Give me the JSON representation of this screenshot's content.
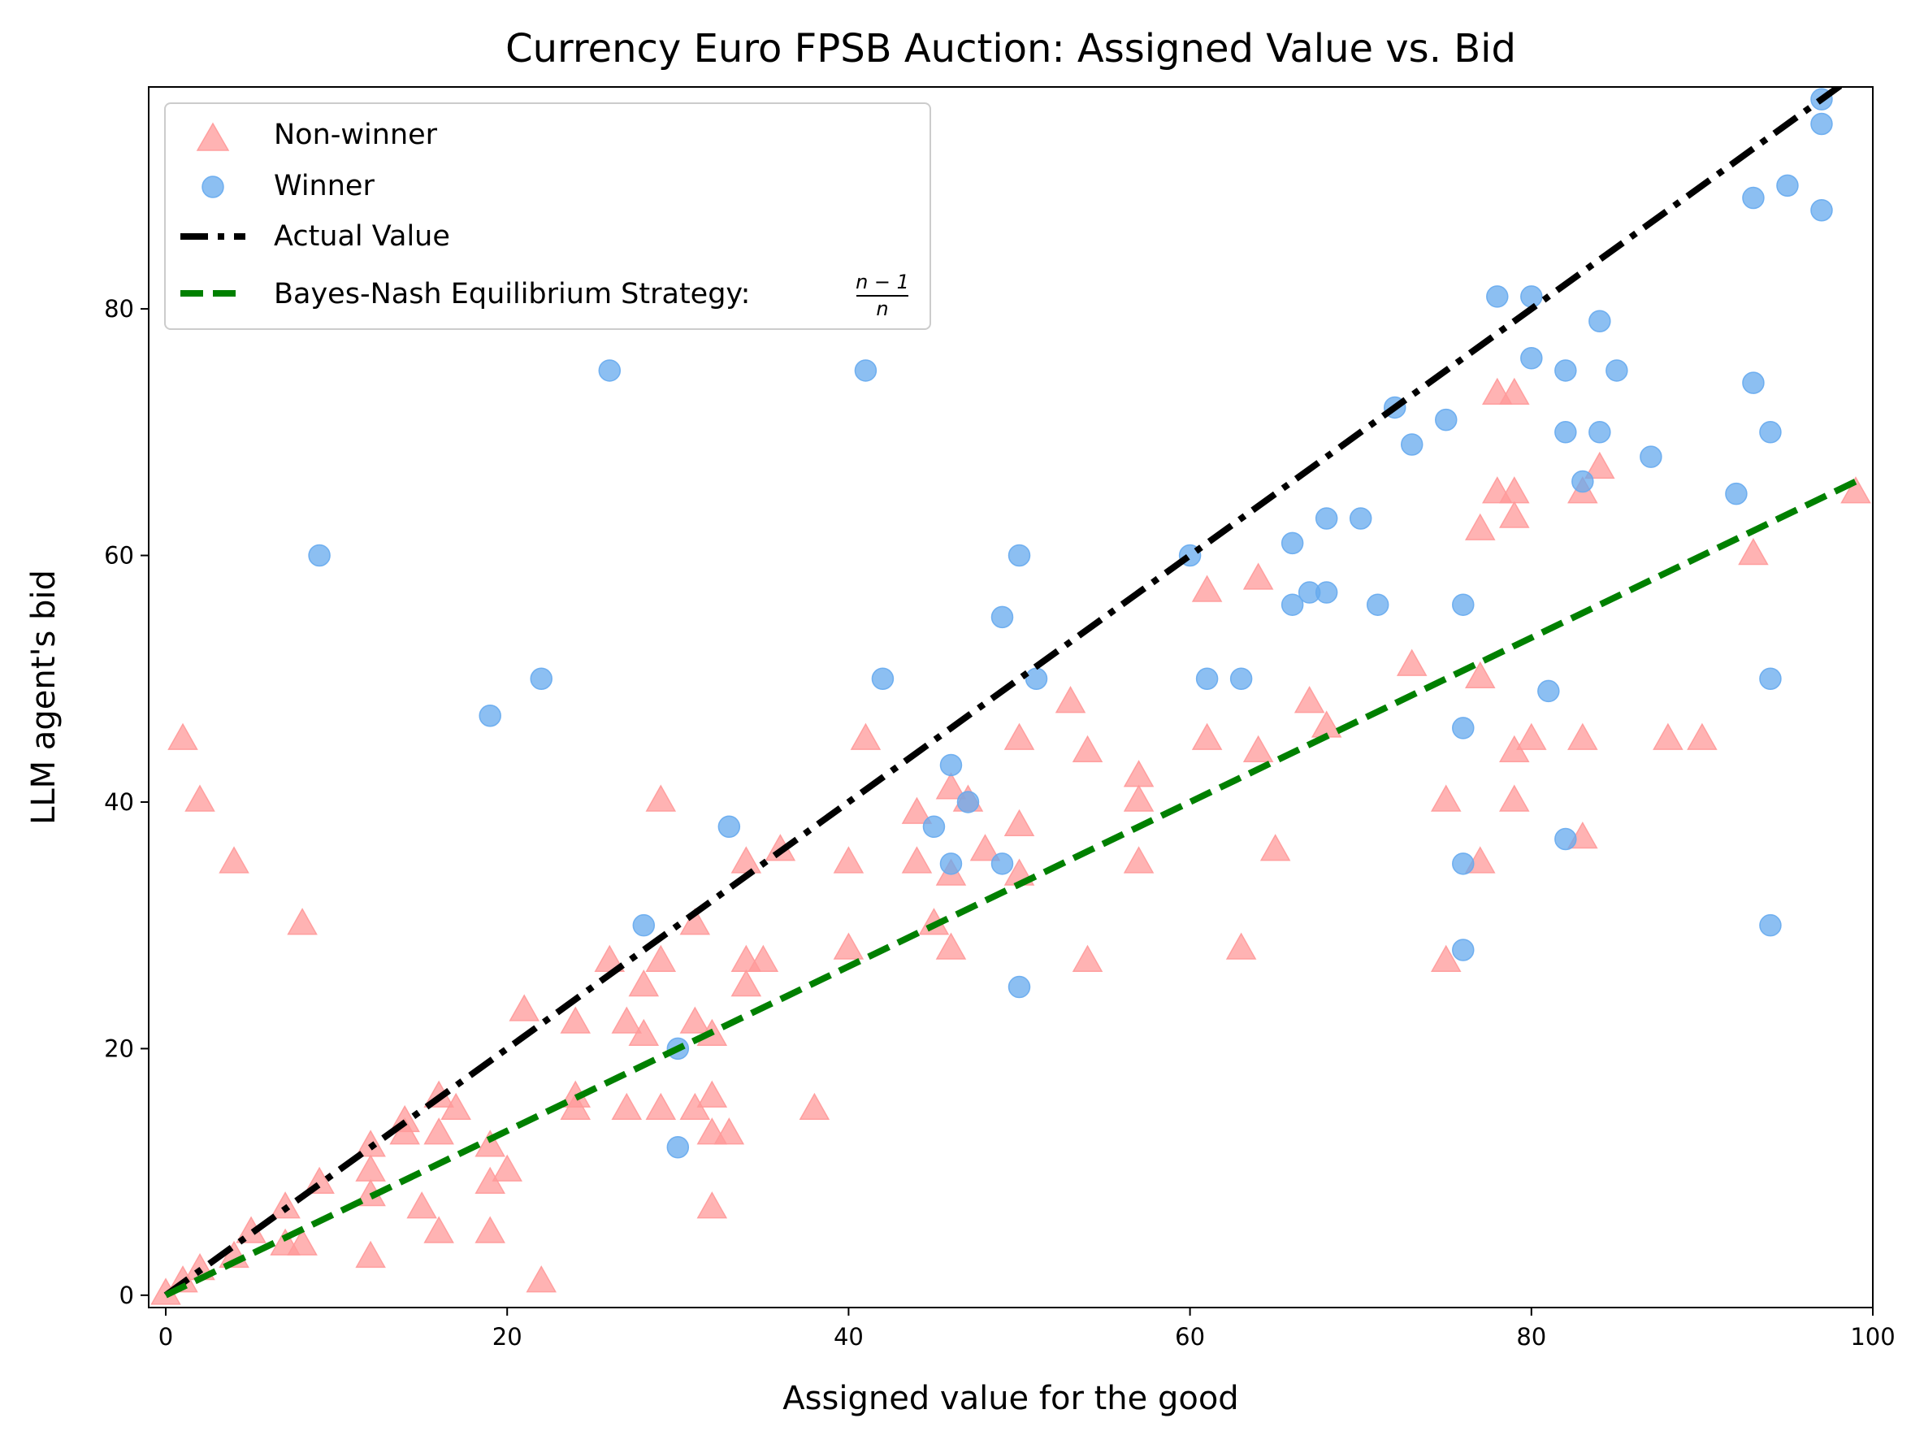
{
  "chart_data": {
    "type": "scatter",
    "title": "Currency Euro FPSB Auction: Assigned Value vs. Bid",
    "xlabel": "Assigned value for the good",
    "ylabel": "LLM agent's bid",
    "xlim": [
      -1,
      100
    ],
    "ylim": [
      -1,
      98
    ],
    "x_ticks": [
      0,
      20,
      40,
      60,
      80,
      100
    ],
    "y_ticks": [
      0,
      20,
      40,
      60,
      80
    ],
    "grid": false,
    "legend_position": "top-left",
    "series": [
      {
        "name": "Non-winner",
        "marker": "triangle",
        "color": "#ff9999",
        "points": [
          [
            0,
            0
          ],
          [
            1,
            1
          ],
          [
            1,
            45
          ],
          [
            2,
            40
          ],
          [
            2,
            2
          ],
          [
            4,
            35
          ],
          [
            4,
            3
          ],
          [
            5,
            5
          ],
          [
            7,
            4
          ],
          [
            7,
            7
          ],
          [
            8,
            30
          ],
          [
            8,
            4
          ],
          [
            9,
            9
          ],
          [
            12,
            10
          ],
          [
            12,
            12
          ],
          [
            12,
            8
          ],
          [
            12,
            3
          ],
          [
            14,
            13
          ],
          [
            14,
            14
          ],
          [
            15,
            7
          ],
          [
            16,
            16
          ],
          [
            16,
            13
          ],
          [
            16,
            5
          ],
          [
            17,
            15
          ],
          [
            19,
            12
          ],
          [
            19,
            9
          ],
          [
            19,
            5
          ],
          [
            20,
            10
          ],
          [
            21,
            23
          ],
          [
            22,
            1
          ],
          [
            24,
            22
          ],
          [
            24,
            15
          ],
          [
            24,
            16
          ],
          [
            26,
            27
          ],
          [
            27,
            22
          ],
          [
            27,
            15
          ],
          [
            28,
            25
          ],
          [
            28,
            21
          ],
          [
            29,
            40
          ],
          [
            29,
            27
          ],
          [
            29,
            15
          ],
          [
            31,
            30
          ],
          [
            31,
            22
          ],
          [
            31,
            15
          ],
          [
            32,
            21
          ],
          [
            32,
            16
          ],
          [
            32,
            13
          ],
          [
            32,
            7
          ],
          [
            33,
            13
          ],
          [
            34,
            35
          ],
          [
            34,
            27
          ],
          [
            34,
            25
          ],
          [
            35,
            27
          ],
          [
            36,
            36
          ],
          [
            38,
            15
          ],
          [
            40,
            35
          ],
          [
            40,
            28
          ],
          [
            41,
            45
          ],
          [
            44,
            39
          ],
          [
            44,
            35
          ],
          [
            45,
            30
          ],
          [
            46,
            41
          ],
          [
            46,
            34
          ],
          [
            46,
            28
          ],
          [
            47,
            40
          ],
          [
            48,
            36
          ],
          [
            50,
            45
          ],
          [
            50,
            38
          ],
          [
            50,
            34
          ],
          [
            53,
            48
          ],
          [
            54,
            44
          ],
          [
            54,
            27
          ],
          [
            57,
            42
          ],
          [
            57,
            40
          ],
          [
            57,
            35
          ],
          [
            61,
            57
          ],
          [
            61,
            45
          ],
          [
            63,
            28
          ],
          [
            64,
            58
          ],
          [
            64,
            44
          ],
          [
            65,
            36
          ],
          [
            67,
            48
          ],
          [
            68,
            46
          ],
          [
            73,
            51
          ],
          [
            75,
            40
          ],
          [
            75,
            27
          ],
          [
            77,
            62
          ],
          [
            77,
            50
          ],
          [
            77,
            35
          ],
          [
            78,
            73
          ],
          [
            78,
            65
          ],
          [
            79,
            73
          ],
          [
            79,
            65
          ],
          [
            79,
            63
          ],
          [
            79,
            44
          ],
          [
            79,
            40
          ],
          [
            80,
            45
          ],
          [
            83,
            65
          ],
          [
            83,
            45
          ],
          [
            83,
            37
          ],
          [
            84,
            67
          ],
          [
            88,
            45
          ],
          [
            90,
            45
          ],
          [
            93,
            60
          ],
          [
            99,
            65
          ]
        ]
      },
      {
        "name": "Winner",
        "marker": "circle",
        "color": "#66aaee",
        "points": [
          [
            9,
            60
          ],
          [
            19,
            47
          ],
          [
            22,
            50
          ],
          [
            26,
            75
          ],
          [
            28,
            30
          ],
          [
            30,
            20
          ],
          [
            30,
            12
          ],
          [
            33,
            38
          ],
          [
            41,
            75
          ],
          [
            42,
            50
          ],
          [
            45,
            38
          ],
          [
            46,
            43
          ],
          [
            46,
            35
          ],
          [
            47,
            40
          ],
          [
            49,
            55
          ],
          [
            49,
            35
          ],
          [
            50,
            60
          ],
          [
            50,
            25
          ],
          [
            51,
            50
          ],
          [
            60,
            60
          ],
          [
            61,
            50
          ],
          [
            63,
            50
          ],
          [
            66,
            61
          ],
          [
            66,
            56
          ],
          [
            67,
            57
          ],
          [
            68,
            63
          ],
          [
            68,
            57
          ],
          [
            70,
            63
          ],
          [
            71,
            56
          ],
          [
            72,
            72
          ],
          [
            73,
            69
          ],
          [
            75,
            71
          ],
          [
            76,
            56
          ],
          [
            76,
            46
          ],
          [
            76,
            35
          ],
          [
            76,
            28
          ],
          [
            78,
            81
          ],
          [
            80,
            81
          ],
          [
            80,
            76
          ],
          [
            81,
            49
          ],
          [
            82,
            75
          ],
          [
            82,
            70
          ],
          [
            82,
            37
          ],
          [
            83,
            66
          ],
          [
            84,
            79
          ],
          [
            84,
            70
          ],
          [
            85,
            75
          ],
          [
            87,
            68
          ],
          [
            92,
            65
          ],
          [
            93,
            89
          ],
          [
            93,
            74
          ],
          [
            94,
            70
          ],
          [
            94,
            50
          ],
          [
            94,
            30
          ],
          [
            95,
            90
          ],
          [
            97,
            97
          ],
          [
            97,
            95
          ],
          [
            97,
            88
          ]
        ]
      }
    ],
    "lines": [
      {
        "name": "Actual Value",
        "style": "dash-dot",
        "color": "#000000",
        "x": [
          0,
          100
        ],
        "y": [
          0,
          100
        ]
      },
      {
        "name": "Bayes-Nash Equilibrium Strategy: ",
        "formula": {
          "numerator": "n − 1",
          "denominator": "n"
        },
        "style": "dashed",
        "color": "#008000",
        "x": [
          0,
          99
        ],
        "y": [
          0,
          66
        ]
      }
    ]
  }
}
